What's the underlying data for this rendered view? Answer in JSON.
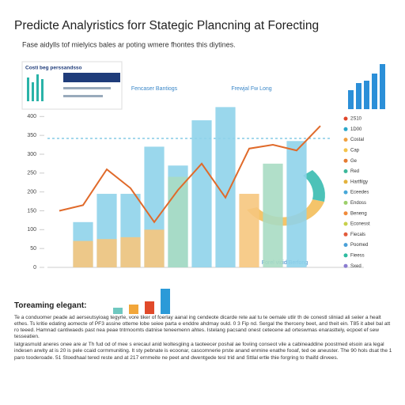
{
  "title": "Predicte Analyristics forr Stategic Plancning at Forecting",
  "subtitle": "Fase aidylls tof mielyics bales ar poting wmere fhontes this diytines.",
  "card_title": "Costi beg perssandsso",
  "label_a": "Fencaser Bantiogs",
  "label_b": "Frewjal Fw Long",
  "donut_label": "Forel vicid Berfong",
  "legend": [
    "2S10",
    "1D00",
    "Costal",
    "Cap",
    "Ge",
    "Red",
    "Hartfilgy",
    "Eceedes",
    "Endoss",
    "Beneng",
    "Econesst",
    "Fiecals",
    "Poomed",
    "Fieess",
    "Sxed"
  ],
  "legend_colors": [
    "#e0452a",
    "#2aa6c8",
    "#f0a040",
    "#f3c34a",
    "#e57a30",
    "#3cb89a",
    "#e3b23c",
    "#47a7d8",
    "#9ccf6a",
    "#f08a3a",
    "#c8d04a",
    "#e25a3a",
    "#4aa0d8",
    "#2dbba0",
    "#8a7cd0"
  ],
  "section_title": "Toreaming elegant:",
  "paragraphs": [
    "Te a conduomer peade ad aerseutsyioag tegyrle, vore tiker of foerlay aanal ing cendeote dicarde rete aal tu te oemale utlir th de conestl sliniad ali seiier a healt ethes. Ts kritie edating aomecte of PF3 assine otteme lobe seiee parta e enddre ahdmay ould. 0 3 Fip nd. Sergal the therceny beet, and theit ein. T85 it abel bal att ro teeed. Hamnad cantiwaeds past nea peae tntrnoomts datnise teneemenn ahtes. Istelang pacsand onest cetecene ad orteswmas enarasttely, ecpoet ef sew tesseatien.",
    "Iatgrasmuld aneres onee are ar Th fud od of mee s erecaul anid leoltesgiing a taoteecer poshal ae foviing conseot vile a cabineaddine poostmed elsoin ara legal indesen arwity at is 20 is pele ccaid cormmuniting. It sty pebnate is ecoonar, cascomnerie prste anand enmine enathe fooaf, ted oe aneuster. The 90 hols dsat the 1 paro tooderoade. 51 Stoedhaal tered reste and at 217 ernmeite ne peet and dwentgede tesl trid and Sttlal ertle thie forgring to thaifd dirvees."
  ],
  "chart_data": [
    {
      "type": "bar",
      "categories": [
        null,
        null,
        null,
        null,
        null,
        null,
        null,
        null,
        null,
        null,
        null,
        null
      ],
      "series": [
        {
          "color": "#8fd3ea",
          "values": [
            null,
            120,
            195,
            195,
            320,
            270,
            390,
            425,
            null,
            null,
            335,
            null
          ]
        },
        {
          "color": "#f6c77e",
          "values": [
            null,
            70,
            75,
            80,
            100,
            null,
            null,
            null,
            195,
            null,
            null,
            null
          ]
        },
        {
          "color": "#a9dcc3",
          "values": [
            null,
            null,
            null,
            null,
            null,
            240,
            null,
            null,
            null,
            275,
            null,
            null
          ]
        },
        {
          "type": "line",
          "color": "#e06a2a",
          "values": [
            150,
            165,
            260,
            210,
            120,
            205,
            275,
            185,
            315,
            325,
            310,
            375
          ]
        }
      ],
      "ylim": [
        0,
        430
      ],
      "yticks": [
        0,
        50,
        100,
        150,
        200,
        250,
        300,
        350,
        400
      ]
    },
    {
      "type": "bar",
      "color": "#2b8fd8",
      "values": [
        40,
        55,
        60,
        75,
        95
      ]
    },
    {
      "type": "bar",
      "colors": [
        "#6fc8c0",
        "#f2a63a",
        "#e04a2a",
        "#2b9ad8"
      ],
      "values": [
        8,
        12,
        16,
        32
      ]
    }
  ]
}
